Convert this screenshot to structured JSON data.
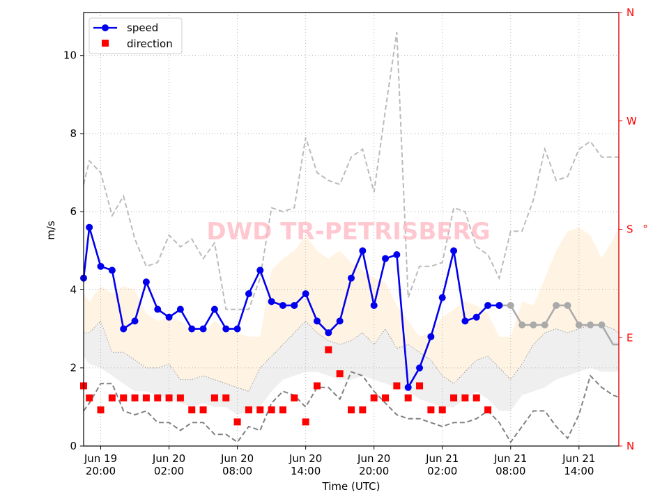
{
  "chart_data": {
    "type": "line",
    "watermark": "DWD TR-PETRISBERG",
    "xlabel": "Time (UTC)",
    "ylabel": "m/s",
    "right_axis_marker": "°",
    "ylim": [
      0,
      11.1
    ],
    "xlim_hours": [
      -1.5,
      45.5
    ],
    "x_ticks": [
      {
        "hour": 0,
        "label": [
          "Jun 19",
          "20:00"
        ]
      },
      {
        "hour": 6,
        "label": [
          "Jun 20",
          "02:00"
        ]
      },
      {
        "hour": 12,
        "label": [
          "Jun 20",
          "08:00"
        ]
      },
      {
        "hour": 18,
        "label": [
          "Jun 20",
          "14:00"
        ]
      },
      {
        "hour": 24,
        "label": [
          "Jun 20",
          "20:00"
        ]
      },
      {
        "hour": 30,
        "label": [
          "Jun 21",
          "02:00"
        ]
      },
      {
        "hour": 36,
        "label": [
          "Jun 21",
          "08:00"
        ]
      },
      {
        "hour": 42,
        "label": [
          "Jun 21",
          "14:00"
        ]
      }
    ],
    "y_ticks": [
      0,
      2,
      4,
      6,
      8,
      10
    ],
    "y2_ticks": [
      {
        "deg": 0,
        "label": "N"
      },
      {
        "deg": 90,
        "label": "E"
      },
      {
        "deg": 180,
        "label": "S"
      },
      {
        "deg": 270,
        "label": "W"
      },
      {
        "deg": 360,
        "label": "N"
      }
    ],
    "grid": true,
    "legend_position": "top-left",
    "legend": [
      {
        "label": "speed",
        "marker": "circle-line",
        "color": "#0000ee"
      },
      {
        "label": "direction",
        "marker": "square",
        "color": "#ff0000"
      }
    ],
    "colors": {
      "speed_observed": "#0000ee",
      "speed_forecast": "#aaaaaa",
      "direction": "#ff0000",
      "upper_dashed": "#bbbbbb",
      "lower_dashed": "#808080",
      "light_band": "#fff4e3",
      "gray_band": "#efefef",
      "watermark": "#ffb6c1",
      "right_axis": "#ff0000"
    },
    "speed_observed": {
      "x": [
        -1.5,
        -1,
        0,
        1,
        2,
        3,
        4,
        5,
        6,
        7,
        8,
        9,
        10,
        11,
        12,
        13,
        14,
        15,
        16,
        17,
        18,
        19,
        20,
        21,
        22,
        23,
        24,
        25,
        26,
        27,
        28,
        29,
        30,
        31,
        32,
        33,
        34,
        35
      ],
      "y": [
        4.3,
        5.6,
        4.6,
        4.5,
        3.0,
        3.2,
        4.2,
        3.5,
        3.3,
        3.5,
        3.0,
        3.0,
        3.5,
        3.0,
        3.0,
        3.9,
        4.5,
        3.7,
        3.6,
        3.6,
        3.9,
        3.2,
        2.9,
        3.2,
        4.3,
        5.0,
        3.6,
        4.8,
        4.9,
        1.5,
        2.0,
        2.8,
        3.8,
        5.0,
        3.2,
        3.3,
        3.6,
        3.6
      ]
    },
    "speed_forecast": {
      "x": [
        35,
        36,
        37,
        38,
        39,
        40,
        41,
        42,
        43,
        44,
        45,
        45.5
      ],
      "y": [
        3.6,
        3.6,
        3.1,
        3.1,
        3.1,
        3.6,
        3.6,
        3.1,
        3.1,
        3.1,
        2.6,
        2.6
      ]
    },
    "direction_deg": {
      "x": [
        -1.5,
        -1,
        0,
        1,
        2,
        3,
        4,
        5,
        6,
        7,
        8,
        9,
        10,
        11,
        12,
        13,
        14,
        15,
        16,
        17,
        18,
        19,
        20,
        21,
        22,
        23,
        24,
        25,
        26,
        27,
        28,
        29,
        30,
        31,
        32,
        33,
        34
      ],
      "y": [
        50,
        40,
        30,
        40,
        40,
        40,
        40,
        40,
        40,
        40,
        30,
        30,
        40,
        40,
        20,
        30,
        30,
        30,
        30,
        40,
        20,
        50,
        80,
        60,
        30,
        30,
        40,
        40,
        50,
        40,
        50,
        30,
        30,
        40,
        40,
        40,
        30
      ]
    },
    "upper_dashed": {
      "x": [
        -1.5,
        -1,
        0,
        1,
        2,
        3,
        4,
        5,
        6,
        7,
        8,
        9,
        10,
        11,
        12,
        13,
        14,
        15,
        16,
        17,
        18,
        19,
        20,
        21,
        22,
        23,
        24,
        25,
        26,
        27,
        28,
        29,
        30,
        31,
        32,
        33,
        34,
        35,
        36,
        37,
        38,
        39,
        40,
        41,
        42,
        43,
        44,
        45,
        45.5
      ],
      "y": [
        6.7,
        7.3,
        7.0,
        5.9,
        6.4,
        5.3,
        4.6,
        4.7,
        5.4,
        5.1,
        5.3,
        4.8,
        5.2,
        3.5,
        3.5,
        3.5,
        4.3,
        6.1,
        6.0,
        6.1,
        7.9,
        7.0,
        6.8,
        6.7,
        7.4,
        7.6,
        6.5,
        8.6,
        10.6,
        3.8,
        4.6,
        4.6,
        4.7,
        6.1,
        6.0,
        5.1,
        4.9,
        4.3,
        5.5,
        5.5,
        6.3,
        7.6,
        6.8,
        6.9,
        7.6,
        7.8,
        7.4,
        7.4,
        7.4
      ]
    },
    "lower_dashed": {
      "x": [
        -1.5,
        -1,
        0,
        1,
        2,
        3,
        4,
        5,
        6,
        7,
        8,
        9,
        10,
        11,
        12,
        13,
        14,
        15,
        16,
        17,
        18,
        19,
        20,
        21,
        22,
        23,
        24,
        25,
        26,
        27,
        28,
        29,
        30,
        31,
        32,
        33,
        34,
        35,
        36,
        37,
        38,
        39,
        40,
        41,
        42,
        43,
        44,
        45,
        45.5
      ],
      "y": [
        0.9,
        1.1,
        1.6,
        1.6,
        0.9,
        0.8,
        0.9,
        0.6,
        0.6,
        0.4,
        0.6,
        0.6,
        0.3,
        0.3,
        0.1,
        0.5,
        0.4,
        1.1,
        1.4,
        1.3,
        1.0,
        1.5,
        1.5,
        1.2,
        1.9,
        1.8,
        1.4,
        1.1,
        0.8,
        0.7,
        0.7,
        0.6,
        0.5,
        0.6,
        0.6,
        0.7,
        0.9,
        0.6,
        0.1,
        0.5,
        0.9,
        0.9,
        0.5,
        0.2,
        0.8,
        1.8,
        1.5,
        1.3,
        1.25
      ]
    },
    "light_band": {
      "x": [
        -1.5,
        -1,
        0,
        1,
        2,
        3,
        4,
        5,
        6,
        7,
        8,
        9,
        10,
        11,
        12,
        13,
        14,
        15,
        16,
        17,
        18,
        19,
        20,
        21,
        22,
        23,
        24,
        25,
        26,
        27,
        28,
        29,
        30,
        31,
        32,
        33,
        34,
        35,
        36,
        37,
        38,
        39,
        40,
        41,
        42,
        43,
        44,
        45,
        45.5
      ],
      "upper": [
        3.9,
        3.7,
        4.1,
        3.9,
        4.1,
        4.0,
        3.4,
        3.2,
        3.3,
        3.2,
        3.0,
        2.9,
        3.2,
        3.0,
        2.9,
        2.8,
        2.8,
        4.5,
        4.8,
        5.0,
        5.4,
        5.0,
        4.8,
        5.0,
        4.7,
        4.5,
        4.3,
        4.2,
        3.6,
        3.2,
        2.8,
        2.9,
        3.3,
        3.5,
        3.7,
        3.6,
        3.4,
        2.8,
        2.8,
        3.7,
        3.6,
        4.3,
        5.0,
        5.5,
        5.6,
        5.4,
        4.8,
        5.3,
        5.6
      ],
      "lower": [
        2.9,
        2.9,
        3.2,
        2.4,
        2.4,
        2.2,
        2.0,
        2.0,
        2.1,
        1.7,
        1.7,
        1.8,
        1.7,
        1.6,
        1.5,
        1.4,
        2.0,
        2.3,
        2.6,
        2.9,
        3.2,
        2.9,
        2.7,
        2.6,
        2.7,
        2.9,
        2.6,
        3.0,
        2.5,
        2.6,
        2.4,
        2.2,
        1.8,
        1.6,
        1.9,
        2.2,
        2.3,
        2.0,
        1.7,
        2.1,
        2.6,
        2.9,
        3.0,
        2.9,
        3.0,
        3.1,
        3.1,
        3.0,
        2.9
      ]
    },
    "gray_band": {
      "x": [
        -1.5,
        -1,
        0,
        1,
        2,
        3,
        4,
        5,
        6,
        7,
        8,
        9,
        10,
        11,
        12,
        13,
        14,
        15,
        16,
        17,
        18,
        19,
        20,
        21,
        22,
        23,
        24,
        25,
        26,
        27,
        28,
        29,
        30,
        31,
        32,
        33,
        34,
        35,
        36,
        37,
        38,
        39,
        40,
        41,
        42,
        43,
        44,
        45,
        45.5
      ],
      "upper": [
        2.9,
        2.9,
        3.2,
        2.4,
        2.4,
        2.2,
        2.0,
        2.0,
        2.1,
        1.7,
        1.7,
        1.8,
        1.7,
        1.6,
        1.5,
        1.4,
        2.0,
        2.3,
        2.6,
        2.9,
        3.2,
        2.9,
        2.7,
        2.6,
        2.7,
        2.9,
        2.6,
        3.0,
        2.5,
        2.6,
        2.4,
        2.2,
        1.8,
        1.6,
        1.9,
        2.2,
        2.3,
        2.0,
        1.7,
        2.1,
        2.6,
        2.9,
        3.0,
        2.9,
        3.0,
        3.1,
        3.1,
        3.0,
        2.9
      ],
      "lower": [
        2.3,
        2.1,
        2.0,
        1.8,
        1.6,
        1.4,
        1.4,
        1.3,
        1.2,
        1.1,
        1.0,
        1.1,
        1.0,
        1.0,
        0.8,
        0.9,
        1.0,
        1.4,
        1.7,
        1.8,
        1.9,
        1.9,
        1.8,
        1.7,
        1.7,
        1.8,
        1.7,
        1.6,
        1.5,
        1.4,
        1.2,
        1.1,
        1.0,
        1.0,
        1.2,
        1.4,
        1.2,
        0.9,
        0.9,
        1.3,
        1.4,
        1.5,
        1.7,
        1.8,
        1.9,
        2.0,
        1.9,
        1.9,
        1.9
      ]
    }
  }
}
